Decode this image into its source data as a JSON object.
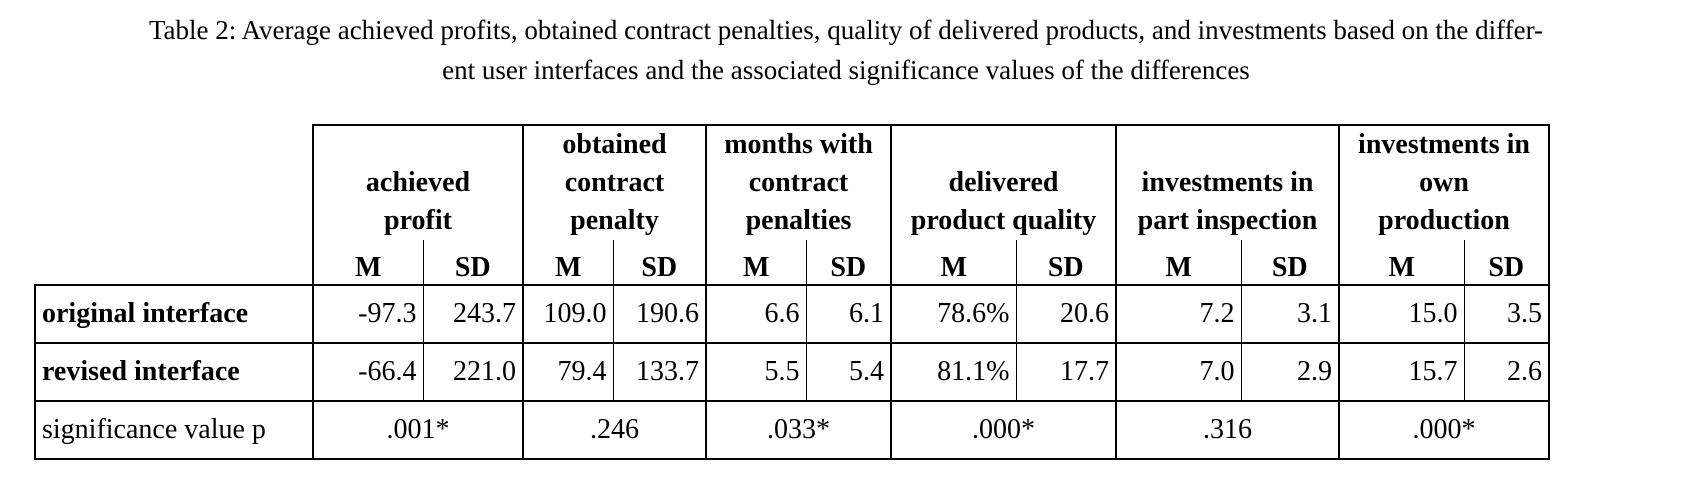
{
  "caption": {
    "line1": "Table 2: Average achieved profits, obtained contract penalties, quality of delivered products, and investments based on the differ-",
    "line2": "ent user interfaces and the associated significance values of the differences"
  },
  "table": {
    "groups": [
      {
        "lines": [
          "achieved",
          "profit"
        ]
      },
      {
        "lines": [
          "obtained",
          "contract",
          "penalty"
        ]
      },
      {
        "lines": [
          "months with",
          "contract",
          "penalties"
        ]
      },
      {
        "lines": [
          "delivered",
          "product quality"
        ]
      },
      {
        "lines": [
          "investments in",
          "part inspection"
        ]
      },
      {
        "lines": [
          "investments in",
          "own",
          "production"
        ]
      }
    ],
    "sub_m": "M",
    "sub_sd": "SD",
    "rows": [
      {
        "label": "original interface",
        "values": [
          "-97.3",
          "243.7",
          "109.0",
          "190.6",
          "6.6",
          "6.1",
          "78.6%",
          "20.6",
          "7.2",
          "3.1",
          "15.0",
          "3.5"
        ]
      },
      {
        "label": "revised interface",
        "values": [
          "-66.4",
          "221.0",
          "79.4",
          "133.7",
          "5.5",
          "5.4",
          "81.1%",
          "17.7",
          "7.0",
          "2.9",
          "15.7",
          "2.6"
        ]
      }
    ],
    "significance": {
      "label": "significance value p",
      "values": [
        ".001*",
        ".246",
        ".033*",
        ".000*",
        ".316",
        ".000*"
      ]
    }
  }
}
